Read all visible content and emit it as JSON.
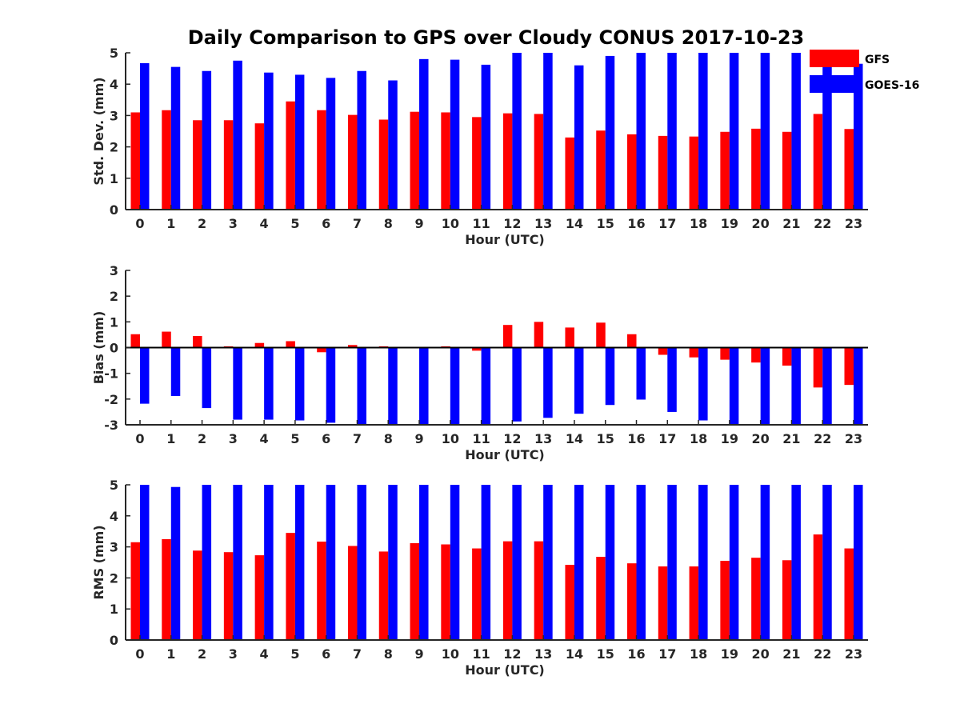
{
  "colors": {
    "series_1": "#ff0000",
    "series_2": "#0000ff",
    "axis": "#262626"
  },
  "chart_data": {
    "title": "Daily Comparison to GPS over Cloudy CONUS 2017-10-23",
    "legend": {
      "placement": "top-right",
      "entries": [
        "GFS",
        "GOES-16"
      ]
    },
    "panels": [
      {
        "type": "bar",
        "ylabel": "Std. Dev. (mm)",
        "xlabel": "Hour (UTC)",
        "ylim": [
          0,
          5
        ],
        "yticks": [
          "0",
          "1",
          "2",
          "3",
          "4",
          "5"
        ],
        "categories": [
          "0",
          "1",
          "2",
          "3",
          "4",
          "5",
          "6",
          "7",
          "8",
          "9",
          "10",
          "11",
          "12",
          "13",
          "14",
          "15",
          "16",
          "17",
          "18",
          "19",
          "20",
          "21",
          "22",
          "23"
        ],
        "series": [
          {
            "name": "GFS",
            "values": [
              3.1,
              3.17,
              2.85,
              2.85,
              2.75,
              3.45,
              3.17,
              3.02,
              2.87,
              3.12,
              3.1,
              2.95,
              3.07,
              3.05,
              2.3,
              2.52,
              2.4,
              2.35,
              2.33,
              2.48,
              2.58,
              2.48,
              3.05,
              2.57
            ]
          },
          {
            "name": "GOES-16",
            "values": [
              4.67,
              4.55,
              4.42,
              4.75,
              4.37,
              4.3,
              4.2,
              4.42,
              4.12,
              4.8,
              4.78,
              4.62,
              5.0,
              5.0,
              4.6,
              4.9,
              5.0,
              5.0,
              5.0,
              5.0,
              5.0,
              5.0,
              5.0,
              4.65
            ]
          }
        ]
      },
      {
        "type": "bar",
        "ylabel": "Bias (mm)",
        "xlabel": "Hour (UTC)",
        "ylim": [
          -3,
          3
        ],
        "yticks": [
          "-3",
          "-2",
          "-1",
          "0",
          "1",
          "2",
          "3"
        ],
        "categories": [
          "0",
          "1",
          "2",
          "3",
          "4",
          "5",
          "6",
          "7",
          "8",
          "9",
          "10",
          "11",
          "12",
          "13",
          "14",
          "15",
          "16",
          "17",
          "18",
          "19",
          "20",
          "21",
          "22",
          "23"
        ],
        "series": [
          {
            "name": "GFS",
            "values": [
              0.52,
              0.62,
              0.45,
              0.05,
              0.18,
              0.25,
              -0.18,
              0.1,
              0.05,
              0.02,
              0.05,
              -0.12,
              0.88,
              1.0,
              0.78,
              0.97,
              0.52,
              -0.28,
              -0.38,
              -0.47,
              -0.58,
              -0.7,
              -1.55,
              -1.45
            ]
          },
          {
            "name": "GOES-16",
            "values": [
              -2.18,
              -1.88,
              -2.35,
              -2.8,
              -2.8,
              -2.83,
              -2.92,
              -3.0,
              -2.98,
              -3.0,
              -3.0,
              -3.0,
              -2.87,
              -2.73,
              -2.57,
              -2.23,
              -2.02,
              -2.5,
              -2.83,
              -3.0,
              -3.0,
              -3.0,
              -3.0,
              -3.0
            ]
          }
        ]
      },
      {
        "type": "bar",
        "ylabel": "RMS (mm)",
        "xlabel": "Hour (UTC)",
        "ylim": [
          0,
          5
        ],
        "yticks": [
          "0",
          "1",
          "2",
          "3",
          "4",
          "5"
        ],
        "categories": [
          "0",
          "1",
          "2",
          "3",
          "4",
          "5",
          "6",
          "7",
          "8",
          "9",
          "10",
          "11",
          "12",
          "13",
          "14",
          "15",
          "16",
          "17",
          "18",
          "19",
          "20",
          "21",
          "22",
          "23"
        ],
        "series": [
          {
            "name": "GFS",
            "values": [
              3.15,
              3.25,
              2.88,
              2.83,
              2.73,
              3.45,
              3.17,
              3.03,
              2.85,
              3.12,
              3.08,
              2.95,
              3.18,
              3.18,
              2.42,
              2.68,
              2.47,
              2.37,
              2.37,
              2.55,
              2.65,
              2.57,
              3.4,
              2.95
            ]
          },
          {
            "name": "GOES-16",
            "values": [
              5.0,
              4.93,
              5.0,
              5.0,
              5.0,
              5.0,
              5.0,
              5.0,
              5.0,
              5.0,
              5.0,
              5.0,
              5.0,
              5.0,
              5.0,
              5.0,
              5.0,
              5.0,
              5.0,
              5.0,
              5.0,
              5.0,
              5.0,
              5.0
            ]
          }
        ]
      }
    ]
  }
}
